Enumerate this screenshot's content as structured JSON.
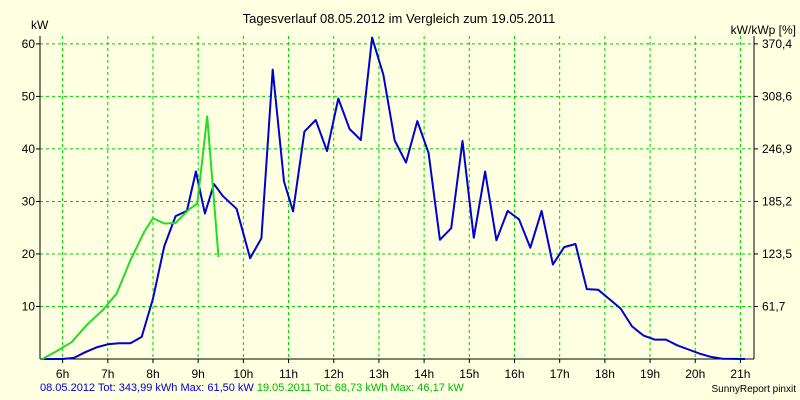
{
  "chart_data": {
    "type": "line",
    "title": "Tagesverlauf 08.05.2012 im Vergleich zum 19.05.2011",
    "ylabel_left": "kW",
    "ylabel_right": "kW/kWp [%]",
    "ylim": [
      0,
      61.5
    ],
    "x_range_hours": [
      5.5,
      21.3
    ],
    "grid": true,
    "y_ticks_left": [
      {
        "value": 10,
        "label": "10"
      },
      {
        "value": 20,
        "label": "20"
      },
      {
        "value": 30,
        "label": "30"
      },
      {
        "value": 40,
        "label": "40"
      },
      {
        "value": 50,
        "label": "50"
      },
      {
        "value": 60,
        "label": "60"
      }
    ],
    "y_ticks_right": [
      {
        "value": 10,
        "label": "61,7"
      },
      {
        "value": 20,
        "label": "123,5"
      },
      {
        "value": 30,
        "label": "185,2"
      },
      {
        "value": 40,
        "label": "246,9"
      },
      {
        "value": 50,
        "label": "308,6"
      },
      {
        "value": 60,
        "label": "370,4"
      }
    ],
    "x_ticks": [
      {
        "value": 6,
        "label": "6h"
      },
      {
        "value": 7,
        "label": "7h"
      },
      {
        "value": 8,
        "label": "8h"
      },
      {
        "value": 9,
        "label": "9h"
      },
      {
        "value": 10,
        "label": "10h"
      },
      {
        "value": 11,
        "label": "11h"
      },
      {
        "value": 12,
        "label": "12h"
      },
      {
        "value": 13,
        "label": "13h"
      },
      {
        "value": 14,
        "label": "14h"
      },
      {
        "value": 15,
        "label": "15h"
      },
      {
        "value": 16,
        "label": "16h"
      },
      {
        "value": 17,
        "label": "17h"
      },
      {
        "value": 18,
        "label": "18h"
      },
      {
        "value": 19,
        "label": "19h"
      },
      {
        "value": 20,
        "label": "20h"
      },
      {
        "value": 21,
        "label": "21h"
      }
    ],
    "series": [
      {
        "name": "08.05.2012",
        "color": "#0000d0",
        "points": [
          [
            5.55,
            0
          ],
          [
            6.0,
            0
          ],
          [
            6.25,
            0.2
          ],
          [
            6.5,
            1.3
          ],
          [
            6.75,
            2.2
          ],
          [
            7.0,
            2.8
          ],
          [
            7.25,
            3.0
          ],
          [
            7.5,
            3.0
          ],
          [
            7.75,
            4.2
          ],
          [
            8.0,
            11.5
          ],
          [
            8.25,
            21.5
          ],
          [
            8.5,
            27.2
          ],
          [
            8.75,
            28.2
          ],
          [
            8.95,
            35.7
          ],
          [
            9.15,
            27.7
          ],
          [
            9.35,
            33.3
          ],
          [
            9.55,
            31.0
          ],
          [
            9.85,
            28.6
          ],
          [
            10.15,
            19.2
          ],
          [
            10.4,
            23.0
          ],
          [
            10.65,
            55.1
          ],
          [
            10.9,
            33.8
          ],
          [
            11.1,
            28.1
          ],
          [
            11.35,
            43.3
          ],
          [
            11.6,
            45.5
          ],
          [
            11.85,
            39.6
          ],
          [
            12.1,
            49.6
          ],
          [
            12.35,
            43.8
          ],
          [
            12.6,
            41.7
          ],
          [
            12.85,
            61.2
          ],
          [
            13.1,
            54.1
          ],
          [
            13.35,
            41.6
          ],
          [
            13.6,
            37.4
          ],
          [
            13.85,
            45.3
          ],
          [
            14.1,
            39.2
          ],
          [
            14.35,
            22.7
          ],
          [
            14.6,
            24.9
          ],
          [
            14.85,
            41.5
          ],
          [
            15.1,
            23.1
          ],
          [
            15.35,
            35.7
          ],
          [
            15.6,
            22.6
          ],
          [
            15.85,
            28.2
          ],
          [
            16.1,
            26.6
          ],
          [
            16.35,
            21.2
          ],
          [
            16.6,
            28.2
          ],
          [
            16.85,
            18.0
          ],
          [
            17.1,
            21.3
          ],
          [
            17.35,
            21.9
          ],
          [
            17.6,
            13.3
          ],
          [
            17.85,
            13.2
          ],
          [
            18.1,
            11.4
          ],
          [
            18.35,
            9.6
          ],
          [
            18.6,
            6.2
          ],
          [
            18.85,
            4.5
          ],
          [
            19.1,
            3.7
          ],
          [
            19.35,
            3.7
          ],
          [
            19.6,
            2.6
          ],
          [
            19.85,
            1.8
          ],
          [
            20.1,
            1.0
          ],
          [
            20.35,
            0.4
          ],
          [
            20.6,
            0.05
          ],
          [
            21.1,
            0
          ]
        ]
      },
      {
        "name": "19.05.2011",
        "color": "#22dd22",
        "points": [
          [
            5.55,
            0
          ],
          [
            5.85,
            1.4
          ],
          [
            6.2,
            3.2
          ],
          [
            6.55,
            6.6
          ],
          [
            6.9,
            9.4
          ],
          [
            7.2,
            12.5
          ],
          [
            7.5,
            18.8
          ],
          [
            7.8,
            24.1
          ],
          [
            8.0,
            26.8
          ],
          [
            8.25,
            25.8
          ],
          [
            8.5,
            25.9
          ],
          [
            8.8,
            28.5
          ],
          [
            8.98,
            29.6
          ],
          [
            9.2,
            46.2
          ],
          [
            9.45,
            19.4
          ]
        ]
      }
    ],
    "footer_2012": "08.05.2012 Tot: 343,99 kWh Max: 61,50 kW",
    "footer_2011": "19.05.2011 Tot: 68,73 kWh Max: 46,17 kW",
    "credit": "SunnyReport pinxit"
  }
}
